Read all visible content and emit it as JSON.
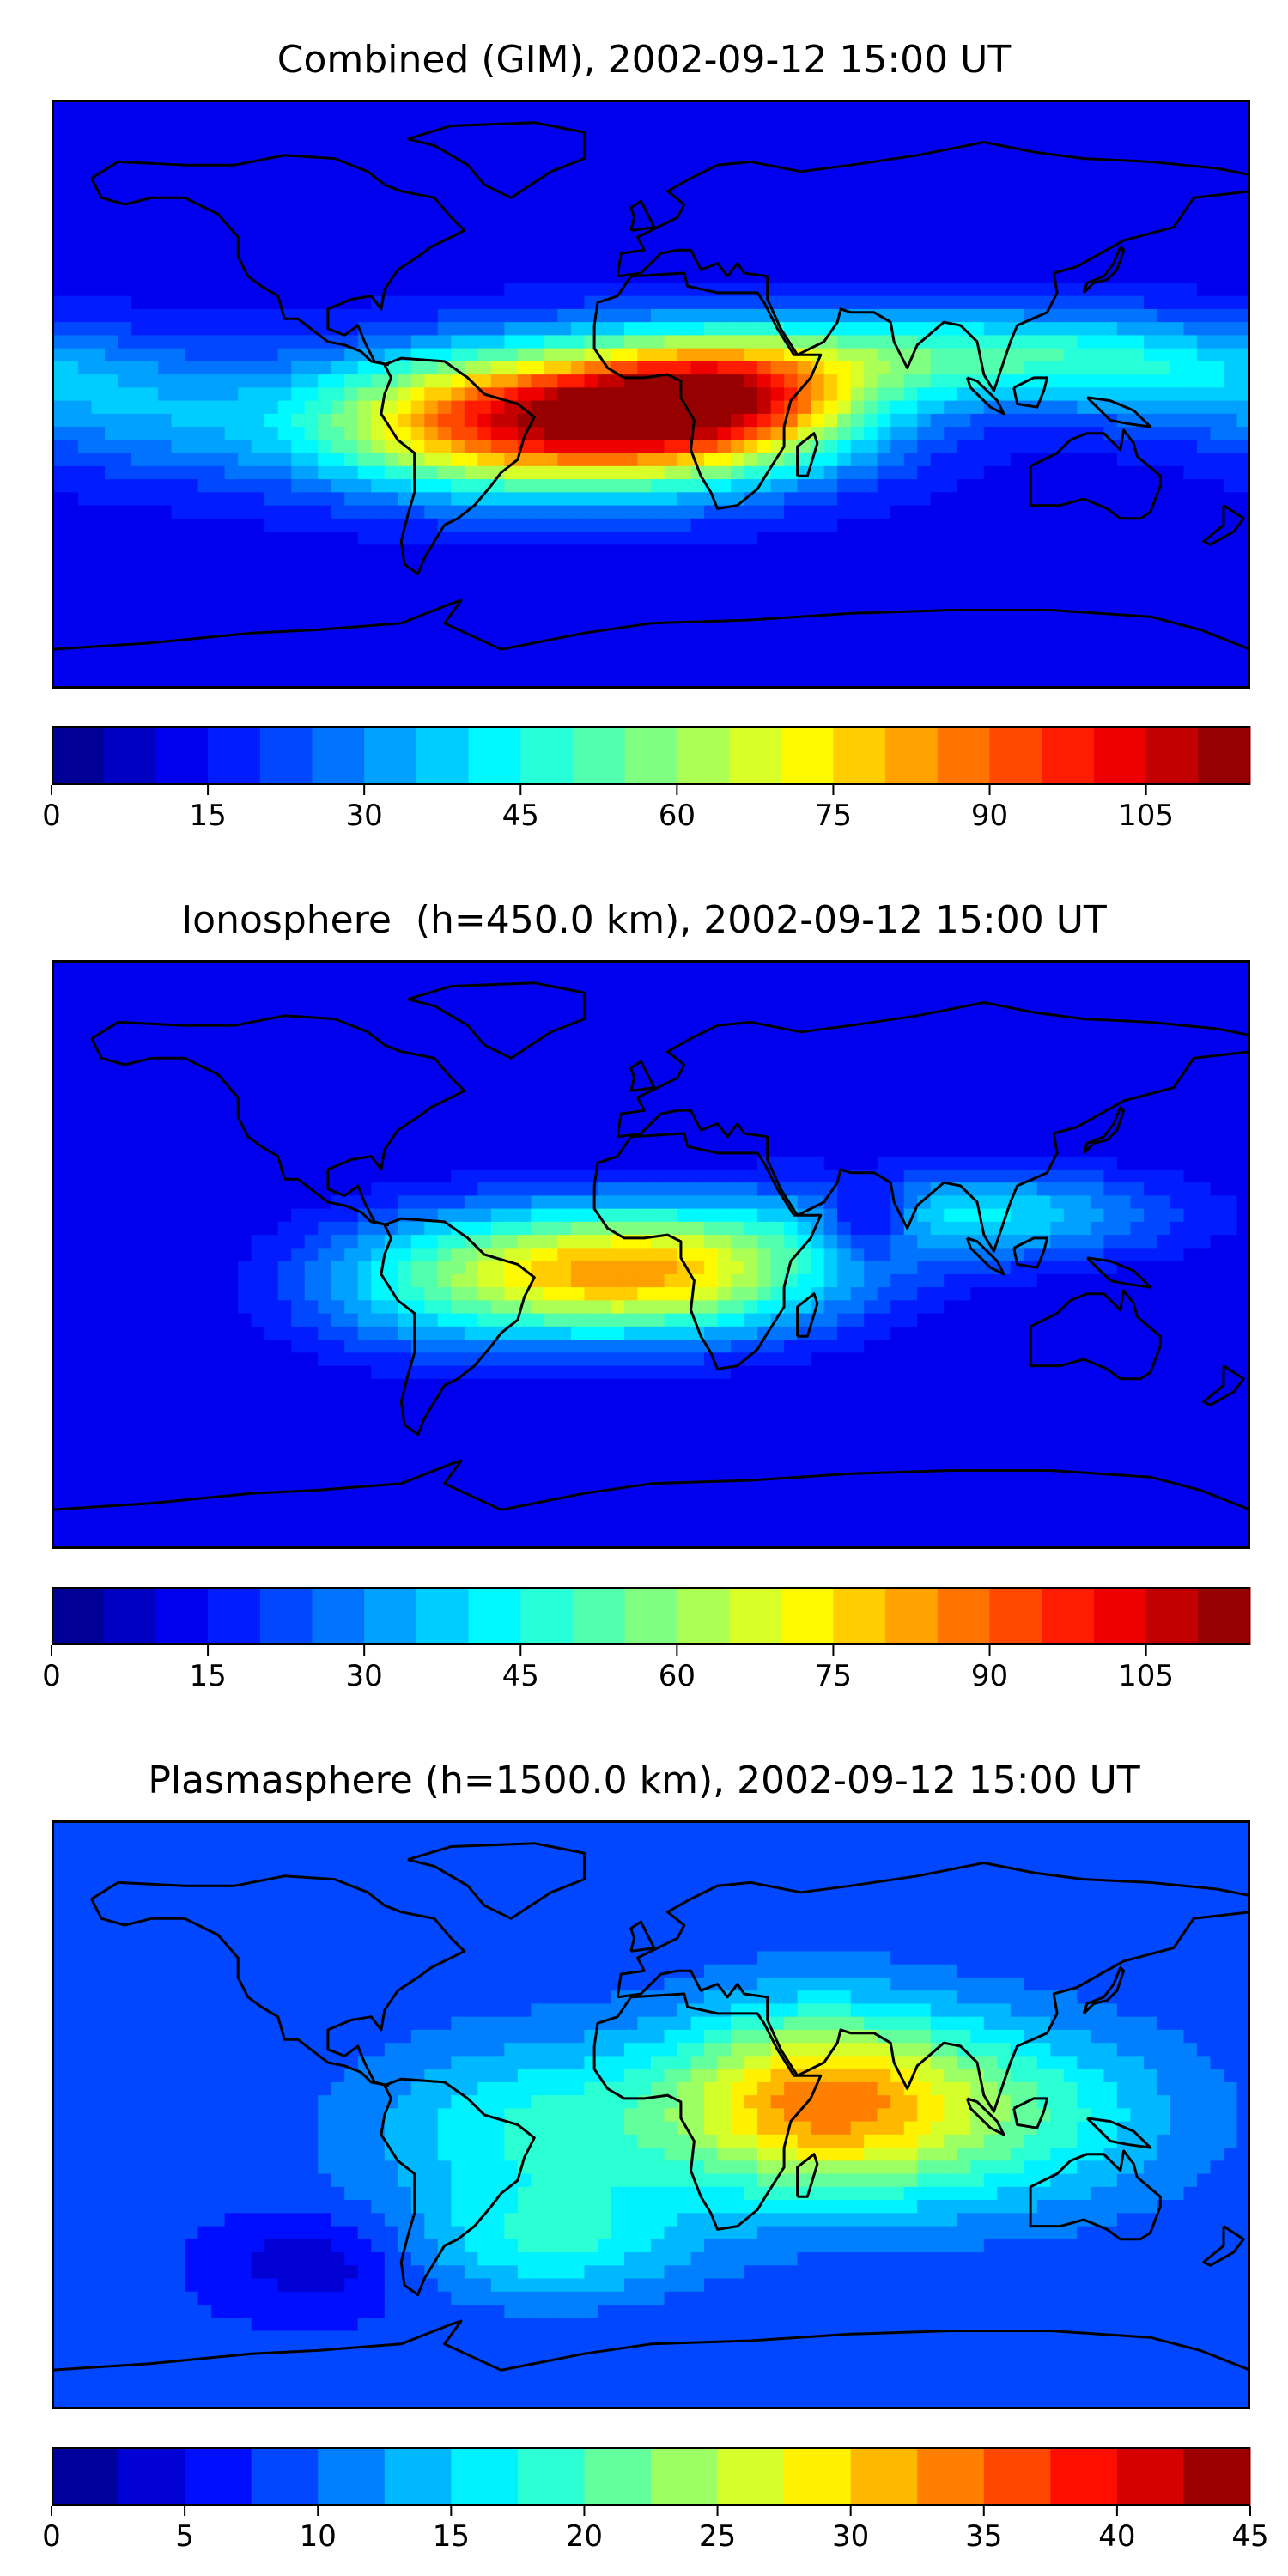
{
  "chart_data": [
    {
      "type": "heatmap",
      "title": "Combined (GIM), 2002-09-12 15:00 UT",
      "colorbar": {
        "vmin": 0,
        "vmax": 115,
        "step": 5,
        "ticks": [
          0,
          15,
          30,
          45,
          60,
          75,
          90,
          105
        ],
        "tick_labels": [
          "0",
          "15",
          "30",
          "45",
          "60",
          "75",
          "90",
          "105"
        ]
      },
      "field": {
        "background": 12,
        "sources": [
          {
            "lon": -10,
            "lat": -7,
            "amp": 95,
            "slon": 45,
            "slat": 15
          },
          {
            "lon": 25,
            "lat": 2,
            "amp": 38,
            "slon": 28,
            "slat": 12
          },
          {
            "lon": 95,
            "lat": 12,
            "amp": 35,
            "slon": 45,
            "slat": 10
          },
          {
            "lon": -70,
            "lat": -10,
            "amp": 30,
            "slon": 35,
            "slat": 15
          },
          {
            "lon": -150,
            "lat": -5,
            "amp": 18,
            "slon": 30,
            "slat": 15
          },
          {
            "lon": 155,
            "lat": 5,
            "amp": 18,
            "slon": 30,
            "slat": 12
          }
        ]
      }
    },
    {
      "type": "heatmap",
      "title": "Ionosphere  (h=450.0 km), 2002-09-12 15:00 UT",
      "colorbar": {
        "vmin": 0,
        "vmax": 115,
        "step": 5,
        "ticks": [
          0,
          15,
          30,
          45,
          60,
          75,
          90,
          105
        ],
        "tick_labels": [
          "0",
          "15",
          "30",
          "45",
          "60",
          "75",
          "90",
          "105"
        ]
      },
      "field": {
        "background": 10,
        "sources": [
          {
            "lon": -5,
            "lat": -5,
            "amp": 72,
            "slon": 42,
            "slat": 14
          },
          {
            "lon": 100,
            "lat": 12,
            "amp": 30,
            "slon": 40,
            "slat": 10
          },
          {
            "lon": -70,
            "lat": -10,
            "amp": 20,
            "slon": 30,
            "slat": 15
          },
          {
            "lon": 65,
            "lat": 10,
            "amp": -25,
            "slon": 10,
            "slat": 8
          }
        ]
      }
    },
    {
      "type": "heatmap",
      "title": "Plasmasphere (h=1500.0 km), 2002-09-12 15:00 UT",
      "colorbar": {
        "vmin": 0,
        "vmax": 45,
        "step": 2.5,
        "ticks": [
          0,
          5,
          10,
          15,
          20,
          25,
          30,
          35,
          40,
          45
        ],
        "tick_labels": [
          "0",
          "5",
          "10",
          "15",
          "20",
          "25",
          "30",
          "35",
          "40",
          "45"
        ]
      },
      "field": {
        "background": 8,
        "sources": [
          {
            "lon": 48,
            "lat": 5,
            "amp": 20,
            "slon": 30,
            "slat": 20
          },
          {
            "lon": -30,
            "lat": -5,
            "amp": 10,
            "slon": 40,
            "slat": 20
          },
          {
            "lon": 100,
            "lat": 0,
            "amp": 12,
            "slon": 40,
            "slat": 20
          },
          {
            "lon": -30,
            "lat": -40,
            "amp": 8,
            "slon": 30,
            "slat": 12
          },
          {
            "lon": -100,
            "lat": -45,
            "amp": -5,
            "slon": 20,
            "slat": 10
          }
        ]
      }
    }
  ]
}
